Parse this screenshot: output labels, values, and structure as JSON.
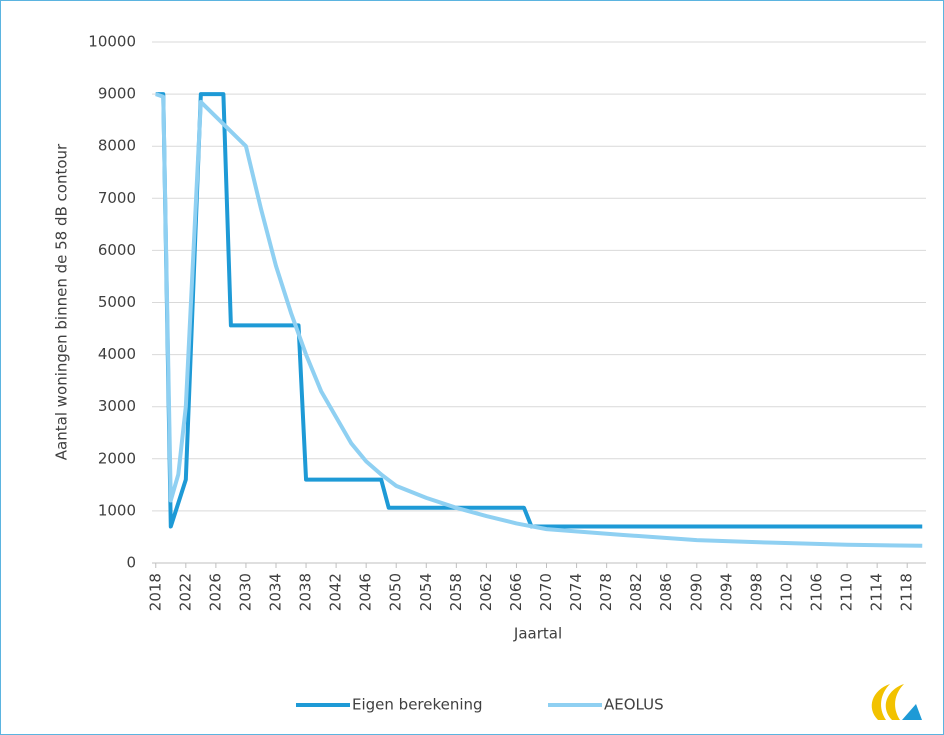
{
  "chart_data": {
    "type": "line",
    "y_label": "Aantal woningen binnen de 58 dB contour",
    "x_label": "Jaartal",
    "xlim": [
      2017.5,
      2120.5
    ],
    "xticks": [
      2018,
      2022,
      2026,
      2030,
      2034,
      2038,
      2042,
      2046,
      2050,
      2054,
      2058,
      2062,
      2066,
      2070,
      2074,
      2078,
      2082,
      2086,
      2090,
      2094,
      2098,
      2102,
      2106,
      2110,
      2114,
      2118
    ],
    "ylim": [
      0,
      10000
    ],
    "yticks": [
      0,
      1000,
      2000,
      3000,
      4000,
      5000,
      6000,
      7000,
      8000,
      9000,
      10000
    ],
    "grid": true,
    "legend": "bottom",
    "series": [
      {
        "name": "Eigen berekening",
        "color": "#1e9ad6",
        "x": [
          2018,
          2019,
          2020,
          2022,
          2024,
          2027,
          2028,
          2037,
          2038,
          2048,
          2049,
          2067,
          2068,
          2120
        ],
        "values": [
          9000,
          9000,
          700,
          1600,
          9000,
          9000,
          4560,
          4560,
          1600,
          1600,
          1060,
          1060,
          700,
          700
        ]
      },
      {
        "name": "AEOLUS",
        "color": "#8fd0f2",
        "x": [
          2018,
          2019,
          2020,
          2021,
          2022,
          2024,
          2030,
          2032,
          2034,
          2036,
          2038,
          2040,
          2042,
          2044,
          2046,
          2048,
          2050,
          2054,
          2058,
          2062,
          2066,
          2070,
          2080,
          2090,
          2100,
          2110,
          2120
        ],
        "values": [
          9000,
          8950,
          1200,
          1700,
          3000,
          8850,
          8000,
          6800,
          5700,
          4800,
          4000,
          3300,
          2800,
          2300,
          1950,
          1700,
          1480,
          1250,
          1060,
          900,
          760,
          650,
          540,
          440,
          390,
          350,
          330
        ]
      }
    ]
  }
}
